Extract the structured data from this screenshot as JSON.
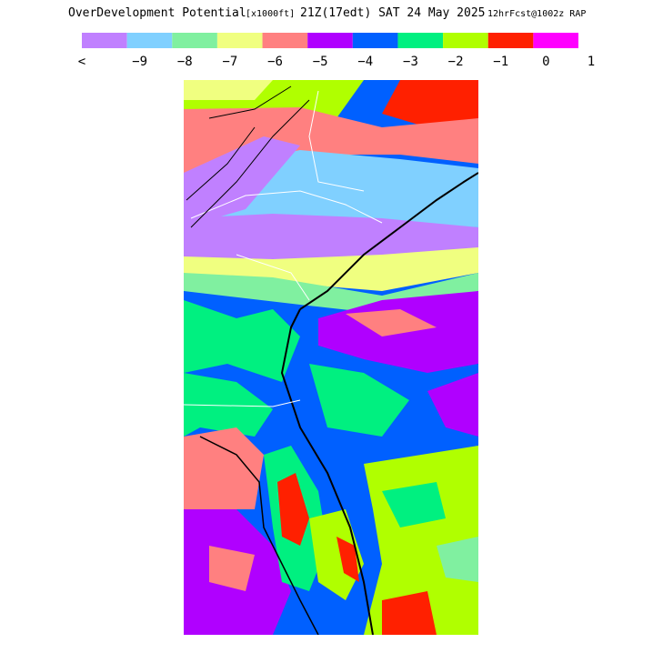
{
  "header": {
    "title": "OverDevelopment Potential",
    "units": "[x1000ft]",
    "valid": "21Z(17edt) SAT 24 May 2025",
    "forecast": "12hrFcst@1002z RAP"
  },
  "colorbar": {
    "colors": [
      "#c080ff",
      "#80d0ff",
      "#80f0a0",
      "#f0ff80",
      "#ff8080",
      "#b000ff",
      "#0060ff",
      "#00f080",
      "#b0ff00",
      "#ff2000",
      "#ff00ff"
    ],
    "labels": [
      "<",
      "−9",
      "−8",
      "−7",
      "−6",
      "−5",
      "−4",
      "−3",
      "−2",
      "−1",
      "0",
      "1"
    ]
  }
}
